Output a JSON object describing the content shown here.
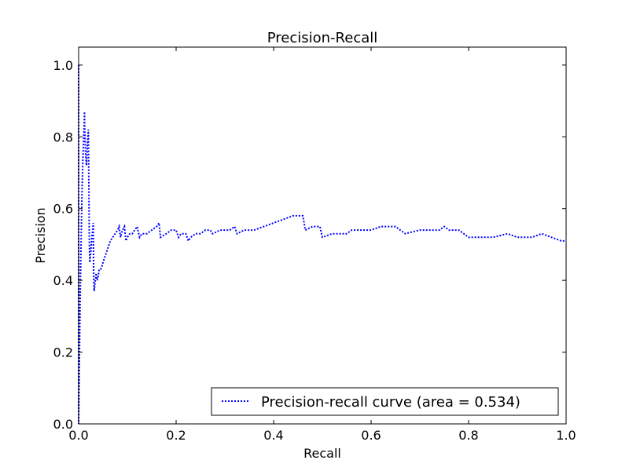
{
  "chart_data": {
    "type": "line",
    "title": "Precision-Recall",
    "xlabel": "Recall",
    "ylabel": "Precision",
    "xlim": [
      0.0,
      1.0
    ],
    "ylim": [
      0.0,
      1.05
    ],
    "x_ticks": [
      0.0,
      0.2,
      0.4,
      0.6,
      0.8,
      1.0
    ],
    "x_tick_labels": [
      "0.0",
      "0.2",
      "0.4",
      "0.6",
      "0.8",
      "1.0"
    ],
    "y_ticks": [
      0.0,
      0.2,
      0.4,
      0.6,
      0.8,
      1.0
    ],
    "y_tick_labels": [
      "0.0",
      "0.2",
      "0.4",
      "0.6",
      "0.8",
      "1.0"
    ],
    "grid": false,
    "legend": {
      "position": "lower-right"
    },
    "series": [
      {
        "name": "Precision-recall curve (area = 0.534)",
        "color": "#0000ff",
        "line_style": "dotted",
        "points": [
          [
            0.0,
            1.0
          ],
          [
            0.0,
            0.0
          ],
          [
            0.003,
            0.33
          ],
          [
            0.005,
            0.5
          ],
          [
            0.007,
            0.65
          ],
          [
            0.009,
            0.75
          ],
          [
            0.011,
            0.82
          ],
          [
            0.012,
            0.87
          ],
          [
            0.013,
            0.8
          ],
          [
            0.014,
            0.76
          ],
          [
            0.016,
            0.72
          ],
          [
            0.018,
            0.78
          ],
          [
            0.02,
            0.82
          ],
          [
            0.022,
            0.5
          ],
          [
            0.023,
            0.45
          ],
          [
            0.025,
            0.48
          ],
          [
            0.027,
            0.52
          ],
          [
            0.029,
            0.54
          ],
          [
            0.03,
            0.56
          ],
          [
            0.031,
            0.4
          ],
          [
            0.032,
            0.37
          ],
          [
            0.034,
            0.4
          ],
          [
            0.036,
            0.42
          ],
          [
            0.038,
            0.4
          ],
          [
            0.04,
            0.41
          ],
          [
            0.042,
            0.43
          ],
          [
            0.045,
            0.43
          ],
          [
            0.048,
            0.44
          ],
          [
            0.05,
            0.45
          ],
          [
            0.055,
            0.47
          ],
          [
            0.06,
            0.49
          ],
          [
            0.065,
            0.51
          ],
          [
            0.07,
            0.52
          ],
          [
            0.075,
            0.53
          ],
          [
            0.08,
            0.54
          ],
          [
            0.083,
            0.55
          ],
          [
            0.086,
            0.52
          ],
          [
            0.09,
            0.54
          ],
          [
            0.094,
            0.55
          ],
          [
            0.097,
            0.51
          ],
          [
            0.1,
            0.52
          ],
          [
            0.105,
            0.53
          ],
          [
            0.11,
            0.53
          ],
          [
            0.115,
            0.54
          ],
          [
            0.12,
            0.55
          ],
          [
            0.125,
            0.52
          ],
          [
            0.13,
            0.53
          ],
          [
            0.14,
            0.53
          ],
          [
            0.15,
            0.54
          ],
          [
            0.16,
            0.55
          ],
          [
            0.165,
            0.56
          ],
          [
            0.168,
            0.52
          ],
          [
            0.18,
            0.53
          ],
          [
            0.19,
            0.54
          ],
          [
            0.2,
            0.54
          ],
          [
            0.205,
            0.52
          ],
          [
            0.21,
            0.53
          ],
          [
            0.22,
            0.53
          ],
          [
            0.225,
            0.51
          ],
          [
            0.23,
            0.52
          ],
          [
            0.24,
            0.53
          ],
          [
            0.25,
            0.53
          ],
          [
            0.26,
            0.54
          ],
          [
            0.27,
            0.54
          ],
          [
            0.275,
            0.53
          ],
          [
            0.29,
            0.54
          ],
          [
            0.31,
            0.54
          ],
          [
            0.32,
            0.55
          ],
          [
            0.325,
            0.53
          ],
          [
            0.34,
            0.54
          ],
          [
            0.36,
            0.54
          ],
          [
            0.38,
            0.55
          ],
          [
            0.4,
            0.56
          ],
          [
            0.42,
            0.57
          ],
          [
            0.44,
            0.58
          ],
          [
            0.45,
            0.58
          ],
          [
            0.46,
            0.58
          ],
          [
            0.465,
            0.54
          ],
          [
            0.48,
            0.55
          ],
          [
            0.495,
            0.55
          ],
          [
            0.5,
            0.52
          ],
          [
            0.52,
            0.53
          ],
          [
            0.55,
            0.53
          ],
          [
            0.56,
            0.54
          ],
          [
            0.6,
            0.54
          ],
          [
            0.62,
            0.55
          ],
          [
            0.65,
            0.55
          ],
          [
            0.66,
            0.54
          ],
          [
            0.67,
            0.53
          ],
          [
            0.7,
            0.54
          ],
          [
            0.74,
            0.54
          ],
          [
            0.75,
            0.55
          ],
          [
            0.76,
            0.54
          ],
          [
            0.78,
            0.54
          ],
          [
            0.79,
            0.53
          ],
          [
            0.8,
            0.52
          ],
          [
            0.85,
            0.52
          ],
          [
            0.88,
            0.53
          ],
          [
            0.9,
            0.52
          ],
          [
            0.93,
            0.52
          ],
          [
            0.95,
            0.53
          ],
          [
            0.97,
            0.52
          ],
          [
            0.99,
            0.51
          ],
          [
            1.0,
            0.51
          ]
        ]
      }
    ]
  }
}
